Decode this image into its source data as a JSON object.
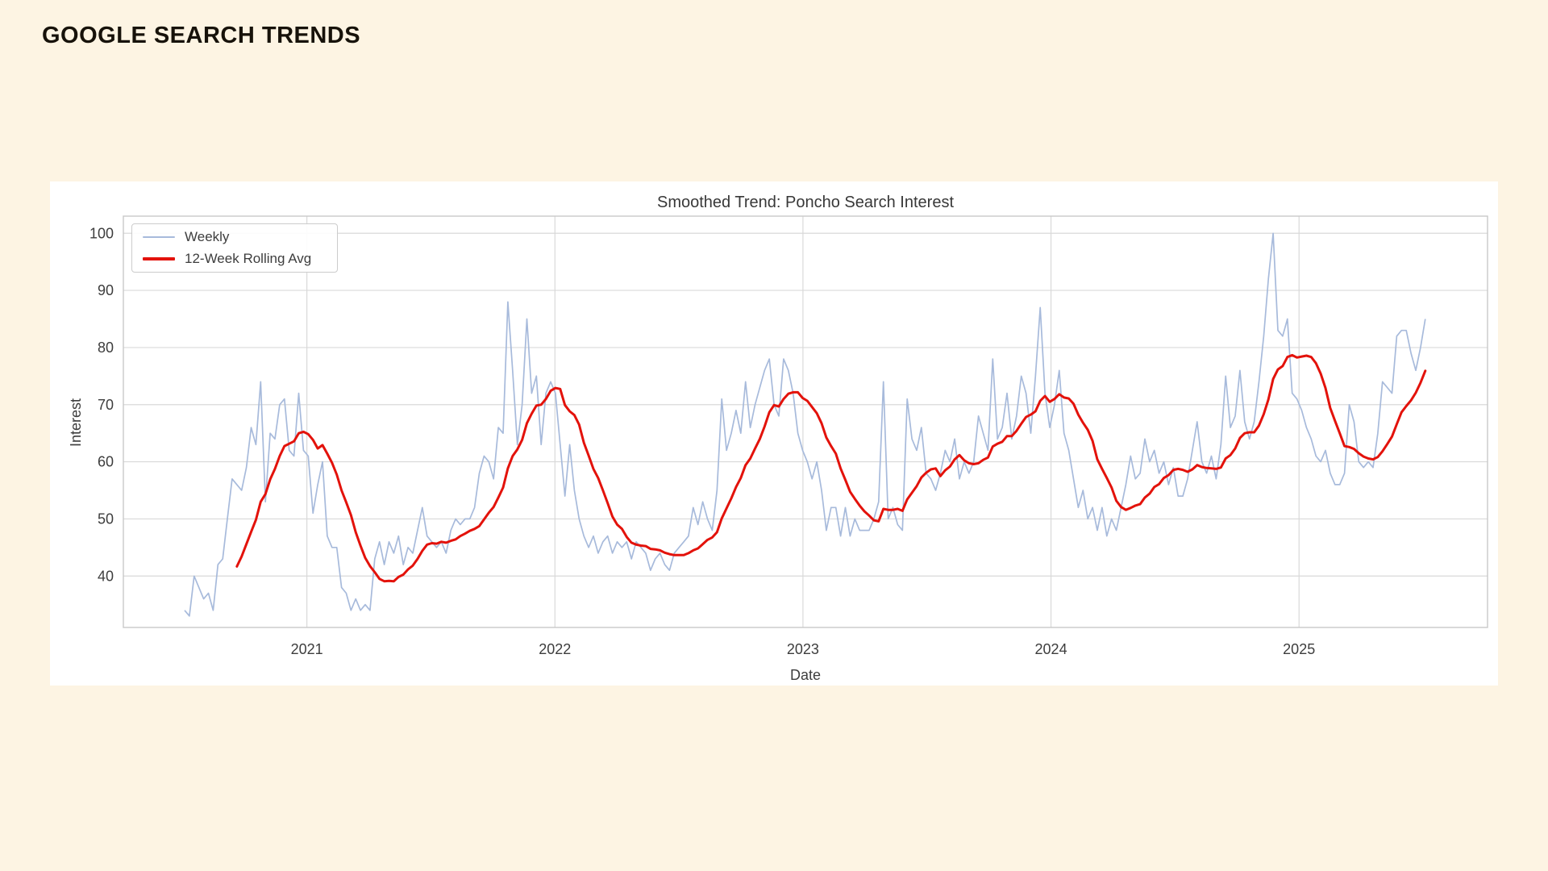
{
  "page": {
    "header": "GOOGLE SEARCH TRENDS",
    "background_color": "#fdf4e3",
    "card_color": "#ffffff"
  },
  "chart_data": {
    "type": "line",
    "title": "Smoothed Trend: Poncho Search Interest",
    "xlabel": "Date",
    "ylabel": "Interest",
    "grid": true,
    "grid_color": "#d9d9d9",
    "spine_color": "#c9c9c9",
    "tick_text_color": "#3d3d3d",
    "legend_position": "upper-left",
    "x_tick_years": [
      2021,
      2022,
      2023,
      2024,
      2025
    ],
    "x_tick_labels": [
      "2021",
      "2022",
      "2023",
      "2024",
      "2025"
    ],
    "y_ticks": [
      40,
      50,
      60,
      70,
      80,
      90,
      100
    ],
    "xlim": [
      2020.26,
      2025.76
    ],
    "ylim": [
      31,
      103
    ],
    "x_start_year": 2020.507,
    "x_step_years": 0.0191651,
    "series": [
      {
        "name": "Weekly",
        "color": "#a7badb",
        "line_width": 1.7,
        "values": [
          34,
          33,
          40,
          38,
          36,
          37,
          34,
          42,
          43,
          50,
          57,
          56,
          55,
          59,
          66,
          63,
          74,
          53,
          65,
          64,
          70,
          71,
          62,
          61,
          72,
          62,
          61,
          51,
          56,
          60,
          47,
          45,
          45,
          38,
          37,
          34,
          36,
          34,
          35,
          34,
          43,
          46,
          42,
          46,
          44,
          47,
          42,
          45,
          44,
          48,
          52,
          47,
          46,
          45,
          46,
          44,
          48,
          50,
          49,
          50,
          50,
          52,
          58,
          61,
          60,
          57,
          66,
          65,
          88,
          76,
          63,
          70,
          85,
          72,
          75,
          63,
          72,
          74,
          72,
          63,
          54,
          63,
          55,
          50,
          47,
          45,
          47,
          44,
          46,
          47,
          44,
          46,
          45,
          46,
          43,
          46,
          45,
          44,
          41,
          43,
          44,
          42,
          41,
          44,
          45,
          46,
          47,
          52,
          49,
          53,
          50,
          48,
          55,
          71,
          62,
          65,
          69,
          65,
          74,
          66,
          70,
          73,
          76,
          78,
          70,
          68,
          78,
          76,
          72,
          65,
          62,
          60,
          57,
          60,
          55,
          48,
          52,
          52,
          47,
          52,
          47,
          50,
          48,
          48,
          48,
          50,
          53,
          74,
          50,
          52,
          49,
          48,
          71,
          64,
          62,
          66,
          58,
          57,
          55,
          58,
          62,
          60,
          64,
          57,
          60,
          58,
          60,
          68,
          65,
          62,
          78,
          64,
          66,
          72,
          64,
          68,
          75,
          72,
          65,
          75,
          87,
          72,
          66,
          70,
          76,
          65,
          62,
          57,
          52,
          55,
          50,
          52,
          48,
          52,
          47,
          50,
          48,
          52,
          56,
          61,
          57,
          58,
          64,
          60,
          62,
          58,
          60,
          56,
          59,
          54,
          54,
          57,
          62,
          67,
          60,
          58,
          61,
          57,
          63,
          75,
          66,
          68,
          76,
          67,
          64,
          67,
          74,
          82,
          92,
          100,
          83,
          82,
          85,
          72,
          71,
          69,
          66,
          64,
          61,
          60,
          62,
          58,
          56,
          56,
          58,
          70,
          67,
          60,
          59,
          60,
          59,
          65,
          74,
          73,
          72,
          82,
          83,
          83,
          79,
          76,
          80,
          85
        ]
      },
      {
        "name": "12-Week Rolling Avg",
        "color": "#e3120b",
        "line_width": 3,
        "derived": "rolling_mean",
        "window": 12,
        "source": "Weekly"
      }
    ]
  }
}
